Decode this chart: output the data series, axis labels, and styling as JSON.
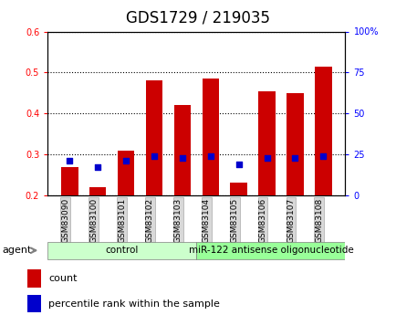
{
  "title": "GDS1729 / 219035",
  "samples": [
    "GSM83090",
    "GSM83100",
    "GSM83101",
    "GSM83102",
    "GSM83103",
    "GSM83104",
    "GSM83105",
    "GSM83106",
    "GSM83107",
    "GSM83108"
  ],
  "count_values": [
    0.27,
    0.22,
    0.31,
    0.48,
    0.42,
    0.485,
    0.23,
    0.455,
    0.45,
    0.515
  ],
  "percentile_values": [
    21,
    17,
    21,
    24,
    23,
    24,
    19,
    23,
    23,
    24
  ],
  "bar_bottom": 0.2,
  "ylim_left": [
    0.2,
    0.6
  ],
  "ylim_right": [
    0,
    100
  ],
  "yticks_left": [
    0.2,
    0.3,
    0.4,
    0.5,
    0.6
  ],
  "yticks_right": [
    0,
    25,
    50,
    75,
    100
  ],
  "ytick_labels_right": [
    "0",
    "25",
    "50",
    "75",
    "100%"
  ],
  "bar_color": "#cc0000",
  "percentile_color": "#0000cc",
  "bar_width": 0.6,
  "groups": [
    {
      "label": "control",
      "indices": [
        0,
        1,
        2,
        3,
        4
      ],
      "color": "#ccffcc"
    },
    {
      "label": "miR-122 antisense oligonucleotide",
      "indices": [
        5,
        6,
        7,
        8,
        9
      ],
      "color": "#99ff99"
    }
  ],
  "agent_label": "agent",
  "legend_items": [
    {
      "label": "count",
      "color": "#cc0000"
    },
    {
      "label": "percentile rank within the sample",
      "color": "#0000cc"
    }
  ],
  "title_fontsize": 12,
  "tick_fontsize": 7,
  "label_fontsize": 8,
  "bg_color": "#e8e8e8",
  "plot_bg": "#ffffff"
}
